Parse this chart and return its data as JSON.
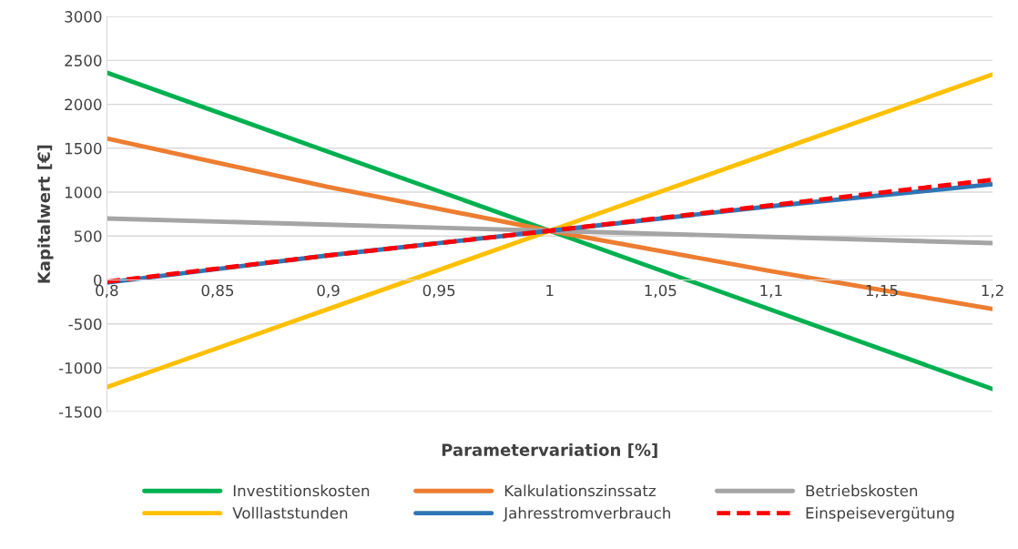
{
  "chart_data": {
    "type": "line",
    "xlabel": "Parametervariation [%]",
    "ylabel": "Kapitalwert [€]",
    "x": [
      0.8,
      0.9,
      1.0,
      1.1,
      1.2
    ],
    "xlim": [
      0.8,
      1.2
    ],
    "xticks": [
      {
        "value": 0.8,
        "label": "0,8"
      },
      {
        "value": 0.85,
        "label": "0,85"
      },
      {
        "value": 0.9,
        "label": "0,9"
      },
      {
        "value": 0.95,
        "label": "0,95"
      },
      1,
      {
        "value": 1.05,
        "label": "1,05"
      },
      {
        "value": 1.1,
        "label": "1,1"
      },
      {
        "value": 1.15,
        "label": "1,15"
      },
      {
        "value": 1.2,
        "label": "1,2"
      }
    ],
    "ylim": [
      -1500,
      3000
    ],
    "yticks": [
      -1500,
      -1000,
      -500,
      0,
      500,
      1000,
      1500,
      2000,
      2500,
      3000
    ],
    "grid": "y",
    "legend": "bottom",
    "marker": "none",
    "series": [
      {
        "name": "Investitionskosten",
        "color": "#00b050",
        "values": [
          2360,
          1460,
          560,
          -340,
          -1240
        ]
      },
      {
        "name": "Kalkulationszinssatz",
        "color": "#ed7d31",
        "values": [
          1610,
          1060,
          560,
          100,
          -330
        ]
      },
      {
        "name": "Betriebskosten",
        "color": "#a5a5a5",
        "values": [
          700,
          630,
          560,
          490,
          420
        ]
      },
      {
        "name": "Volllaststunden",
        "color": "#ffc000",
        "values": [
          -1220,
          -330,
          560,
          1450,
          2340
        ]
      },
      {
        "name": "Jahresstromverbrauch",
        "color": "#2e75b6",
        "values": [
          -30,
          280,
          560,
          840,
          1090
        ]
      },
      {
        "name": "Einspeisevergütung",
        "color": "#ff0000",
        "line_style": "dashed",
        "values": [
          -20,
          280,
          560,
          850,
          1140
        ]
      }
    ]
  }
}
